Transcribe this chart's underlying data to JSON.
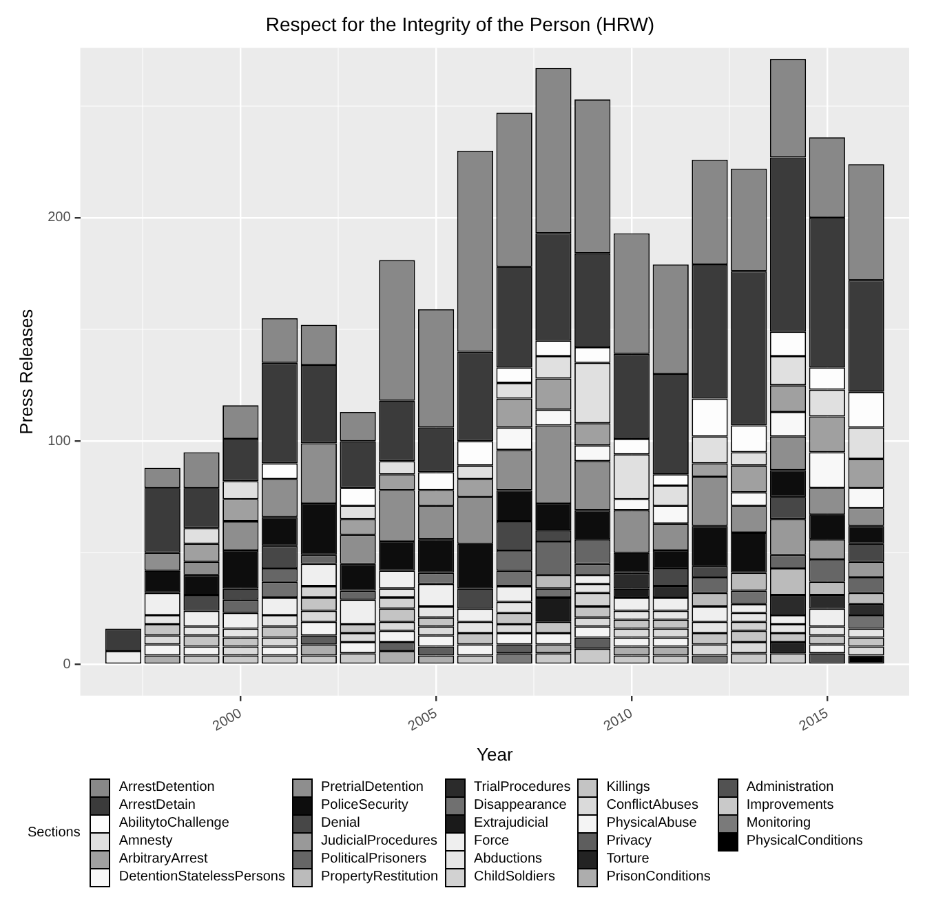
{
  "chart_data": {
    "type": "bar",
    "title": "Respect for the Integrity of the Person (HRW)",
    "xlabel": "Year",
    "ylabel": "Press Releases",
    "legend_title": "Sections",
    "stacked": true,
    "grid": true,
    "legend": "bottom",
    "x": [
      1997,
      1998,
      1999,
      2000,
      2001,
      2002,
      2003,
      2004,
      2005,
      2006,
      2007,
      2008,
      2009,
      2010,
      2011,
      2012,
      2013,
      2014,
      2015,
      2016
    ],
    "xlim": [
      1995.9,
      2017.1
    ],
    "xticks": [
      {
        "value": 1997.5,
        "label": null
      },
      2000,
      {
        "value": 2002.5,
        "label": null
      },
      2005,
      {
        "value": 2007.5,
        "label": null
      },
      2010,
      {
        "value": 2012.5,
        "label": null
      },
      2015
    ],
    "ylim": [
      -14,
      276
    ],
    "yticks": [
      0,
      {
        "value": 50,
        "label": null
      },
      100,
      {
        "value": 150,
        "label": null
      },
      200,
      {
        "value": 250,
        "label": null
      }
    ],
    "series": [
      {
        "name": "PhysicalConditions",
        "color": "#000000",
        "values": [
          0,
          0,
          0,
          0,
          0,
          0,
          0,
          0,
          0,
          0,
          0,
          0,
          0,
          0,
          0,
          0,
          0,
          0,
          0,
          4
        ]
      },
      {
        "name": "Monitoring",
        "color": "#7a7a7a",
        "values": [
          0,
          0,
          0,
          0,
          0,
          0,
          0,
          0,
          0,
          0,
          5,
          0,
          0,
          0,
          0,
          4,
          0,
          0,
          0,
          0
        ]
      },
      {
        "name": "Improvements",
        "color": "#c9c9c9",
        "values": [
          0,
          0,
          4,
          4,
          4,
          4,
          5,
          0,
          0,
          4,
          0,
          5,
          7,
          4,
          4,
          0,
          5,
          5,
          0,
          0
        ]
      },
      {
        "name": "Administration",
        "color": "#525252",
        "values": [
          0,
          0,
          0,
          0,
          0,
          0,
          0,
          0,
          0,
          0,
          0,
          0,
          0,
          0,
          0,
          0,
          0,
          0,
          5,
          0
        ]
      },
      {
        "name": "PrisonConditions",
        "color": "#adadad",
        "values": [
          0,
          4,
          0,
          0,
          0,
          5,
          0,
          6,
          4,
          0,
          0,
          4,
          0,
          4,
          4,
          0,
          0,
          0,
          0,
          0
        ]
      },
      {
        "name": "Torture",
        "color": "#232323",
        "values": [
          0,
          0,
          0,
          0,
          0,
          0,
          0,
          0,
          0,
          0,
          0,
          0,
          0,
          0,
          0,
          0,
          0,
          5,
          0,
          0
        ]
      },
      {
        "name": "Privacy",
        "color": "#5e5e5e",
        "values": [
          0,
          0,
          0,
          0,
          0,
          4,
          0,
          4,
          4,
          0,
          4,
          0,
          5,
          0,
          0,
          0,
          0,
          0,
          0,
          0
        ]
      },
      {
        "name": "PhysicalAbuse",
        "color": "#f4f4f4",
        "values": [
          0,
          5,
          4,
          0,
          4,
          6,
          5,
          5,
          5,
          5,
          5,
          5,
          5,
          4,
          4,
          0,
          0,
          0,
          4,
          0
        ]
      },
      {
        "name": "ConflictAbuses",
        "color": "#dadada",
        "values": [
          0,
          4,
          0,
          4,
          4,
          5,
          4,
          4,
          4,
          0,
          4,
          0,
          4,
          4,
          4,
          5,
          5,
          0,
          0,
          4
        ]
      },
      {
        "name": "Killings",
        "color": "#c4c4c4",
        "values": [
          0,
          5,
          5,
          4,
          5,
          6,
          4,
          6,
          4,
          5,
          5,
          5,
          5,
          4,
          4,
          5,
          5,
          4,
          4,
          4
        ]
      },
      {
        "name": "ChildSoldiers",
        "color": "#d2d2d2",
        "values": [
          0,
          0,
          0,
          0,
          0,
          5,
          0,
          5,
          0,
          0,
          0,
          0,
          6,
          0,
          0,
          0,
          4,
          0,
          0,
          0
        ]
      },
      {
        "name": "Abductions",
        "color": "#e6e6e6",
        "values": [
          0,
          4,
          4,
          4,
          5,
          0,
          0,
          4,
          5,
          5,
          5,
          0,
          4,
          4,
          4,
          5,
          4,
          4,
          4,
          4
        ]
      },
      {
        "name": "Force",
        "color": "#efefef",
        "values": [
          6,
          10,
          7,
          7,
          8,
          10,
          11,
          8,
          10,
          6,
          7,
          0,
          4,
          6,
          6,
          7,
          4,
          4,
          8,
          0
        ]
      },
      {
        "name": "Extrajudicial",
        "color": "#1a1a1a",
        "values": [
          0,
          0,
          0,
          0,
          0,
          0,
          0,
          0,
          0,
          0,
          0,
          11,
          0,
          4,
          0,
          0,
          0,
          0,
          0,
          0
        ]
      },
      {
        "name": "Disappearance",
        "color": "#707070",
        "values": [
          0,
          0,
          0,
          0,
          7,
          0,
          0,
          0,
          5,
          0,
          7,
          4,
          5,
          0,
          0,
          0,
          6,
          0,
          0,
          6
        ]
      },
      {
        "name": "TrialProcedures",
        "color": "#2b2b2b",
        "values": [
          0,
          0,
          0,
          0,
          0,
          0,
          0,
          0,
          0,
          0,
          0,
          0,
          0,
          7,
          5,
          0,
          0,
          9,
          6,
          5
        ]
      },
      {
        "name": "PropertyRestitution",
        "color": "#bbbbbb",
        "values": [
          0,
          0,
          0,
          0,
          0,
          0,
          0,
          0,
          0,
          0,
          0,
          6,
          0,
          0,
          0,
          6,
          8,
          12,
          6,
          5
        ]
      },
      {
        "name": "PoliticalPrisoners",
        "color": "#666666",
        "values": [
          0,
          0,
          0,
          6,
          6,
          4,
          4,
          0,
          0,
          0,
          9,
          15,
          11,
          0,
          0,
          7,
          0,
          6,
          10,
          7
        ]
      },
      {
        "name": "JudicialProcedures",
        "color": "#999999",
        "values": [
          0,
          0,
          0,
          0,
          0,
          0,
          0,
          0,
          0,
          0,
          0,
          0,
          0,
          0,
          0,
          0,
          0,
          16,
          9,
          7
        ]
      },
      {
        "name": "Denial",
        "color": "#474747",
        "values": [
          0,
          0,
          7,
          5,
          10,
          0,
          0,
          0,
          0,
          9,
          13,
          5,
          0,
          0,
          8,
          5,
          0,
          10,
          0,
          8
        ]
      },
      {
        "name": "PoliceSecurity",
        "color": "#0d0d0d",
        "values": [
          0,
          10,
          9,
          17,
          13,
          23,
          12,
          13,
          15,
          20,
          14,
          12,
          13,
          9,
          8,
          18,
          18,
          12,
          11,
          8
        ]
      },
      {
        "name": "PretrialDetention",
        "color": "#8e8e8e",
        "values": [
          0,
          8,
          6,
          13,
          17,
          27,
          13,
          23,
          15,
          21,
          18,
          35,
          22,
          19,
          12,
          22,
          12,
          15,
          12,
          8
        ]
      },
      {
        "name": "DetentionStatelessPersons",
        "color": "#f8f8f8",
        "values": [
          0,
          0,
          0,
          0,
          0,
          0,
          0,
          0,
          0,
          0,
          10,
          7,
          7,
          5,
          8,
          0,
          6,
          11,
          16,
          9
        ]
      },
      {
        "name": "ArbitraryArrest",
        "color": "#a0a0a0",
        "values": [
          0,
          0,
          8,
          10,
          0,
          0,
          7,
          7,
          7,
          8,
          13,
          14,
          10,
          0,
          0,
          6,
          12,
          12,
          16,
          13
        ]
      },
      {
        "name": "Amnesty",
        "color": "#e0e0e0",
        "values": [
          0,
          0,
          7,
          8,
          0,
          0,
          6,
          6,
          0,
          6,
          7,
          10,
          27,
          20,
          9,
          12,
          6,
          13,
          12,
          14
        ]
      },
      {
        "name": "AbilitytoChallenge",
        "color": "#fdfdfd",
        "values": [
          0,
          0,
          0,
          0,
          7,
          0,
          8,
          0,
          8,
          11,
          7,
          7,
          7,
          7,
          5,
          17,
          12,
          11,
          10,
          16
        ]
      },
      {
        "name": "ArrestDetain",
        "color": "#3b3b3b",
        "values": [
          10,
          29,
          18,
          19,
          45,
          35,
          21,
          27,
          20,
          40,
          45,
          48,
          42,
          38,
          45,
          60,
          69,
          78,
          67,
          50
        ]
      },
      {
        "name": "ArrestDetention",
        "color": "#888888",
        "values": [
          0,
          9,
          16,
          15,
          20,
          18,
          13,
          63,
          53,
          90,
          69,
          74,
          69,
          54,
          49,
          47,
          46,
          44,
          36,
          52
        ]
      }
    ]
  }
}
